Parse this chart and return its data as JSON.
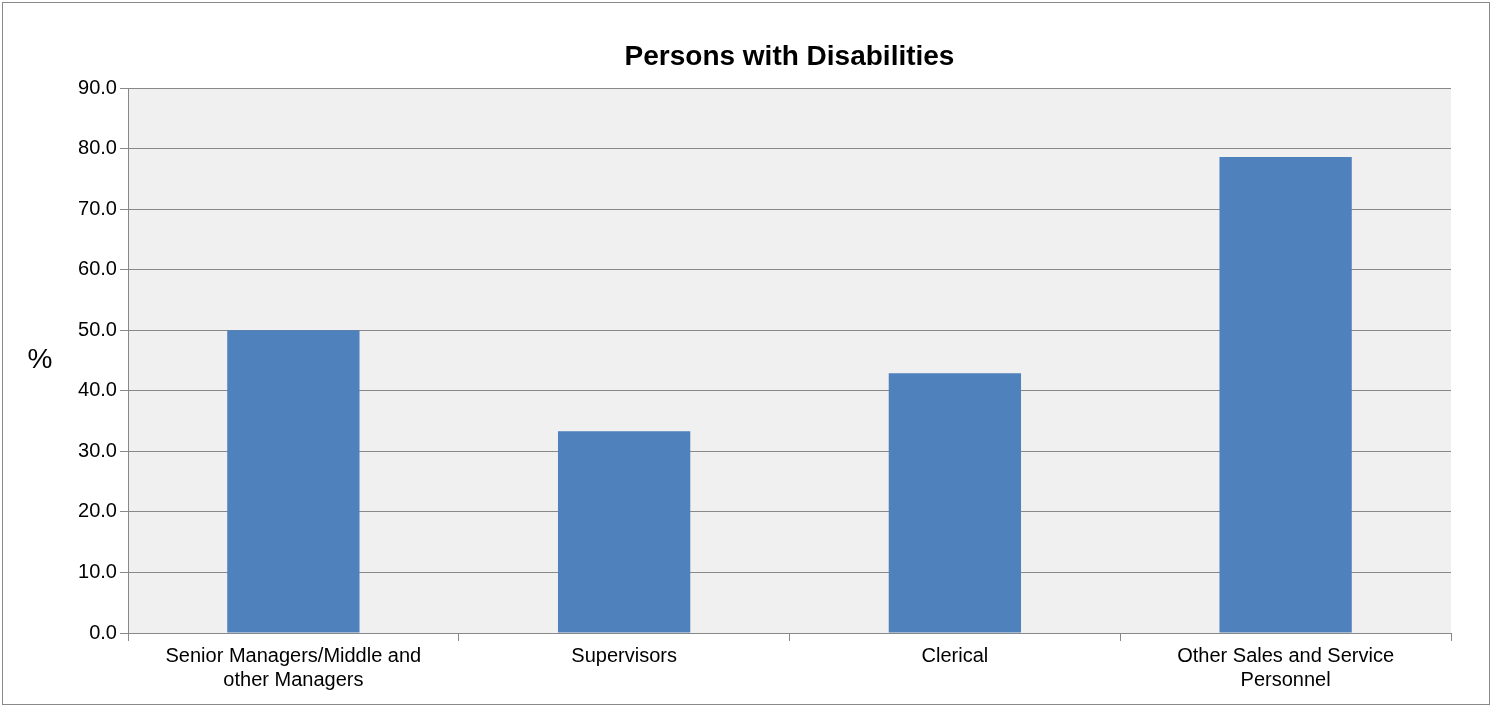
{
  "chart_data": {
    "type": "bar",
    "title": "Persons with Disabilities",
    "ylabel": "%",
    "categories": [
      "Senior Managers/Middle and other Managers",
      "Supervisors",
      "Clerical",
      "Other Sales and Service Personnel"
    ],
    "values": [
      50.0,
      33.3,
      42.9,
      78.6
    ],
    "color": "#4f81bd",
    "ylim": [
      0,
      90
    ],
    "yticks": [
      {
        "value": 0,
        "label": "0.0"
      },
      {
        "value": 10,
        "label": "10.0"
      },
      {
        "value": 20,
        "label": "20.0"
      },
      {
        "value": 30,
        "label": "30.0"
      },
      {
        "value": 40,
        "label": "40.0"
      },
      {
        "value": 50,
        "label": "50.0"
      },
      {
        "value": 60,
        "label": "60.0"
      },
      {
        "value": 70,
        "label": "70.0"
      },
      {
        "value": 80,
        "label": "80.0"
      },
      {
        "value": 90,
        "label": "90.0"
      }
    ],
    "grid": "y",
    "legend": false
  }
}
